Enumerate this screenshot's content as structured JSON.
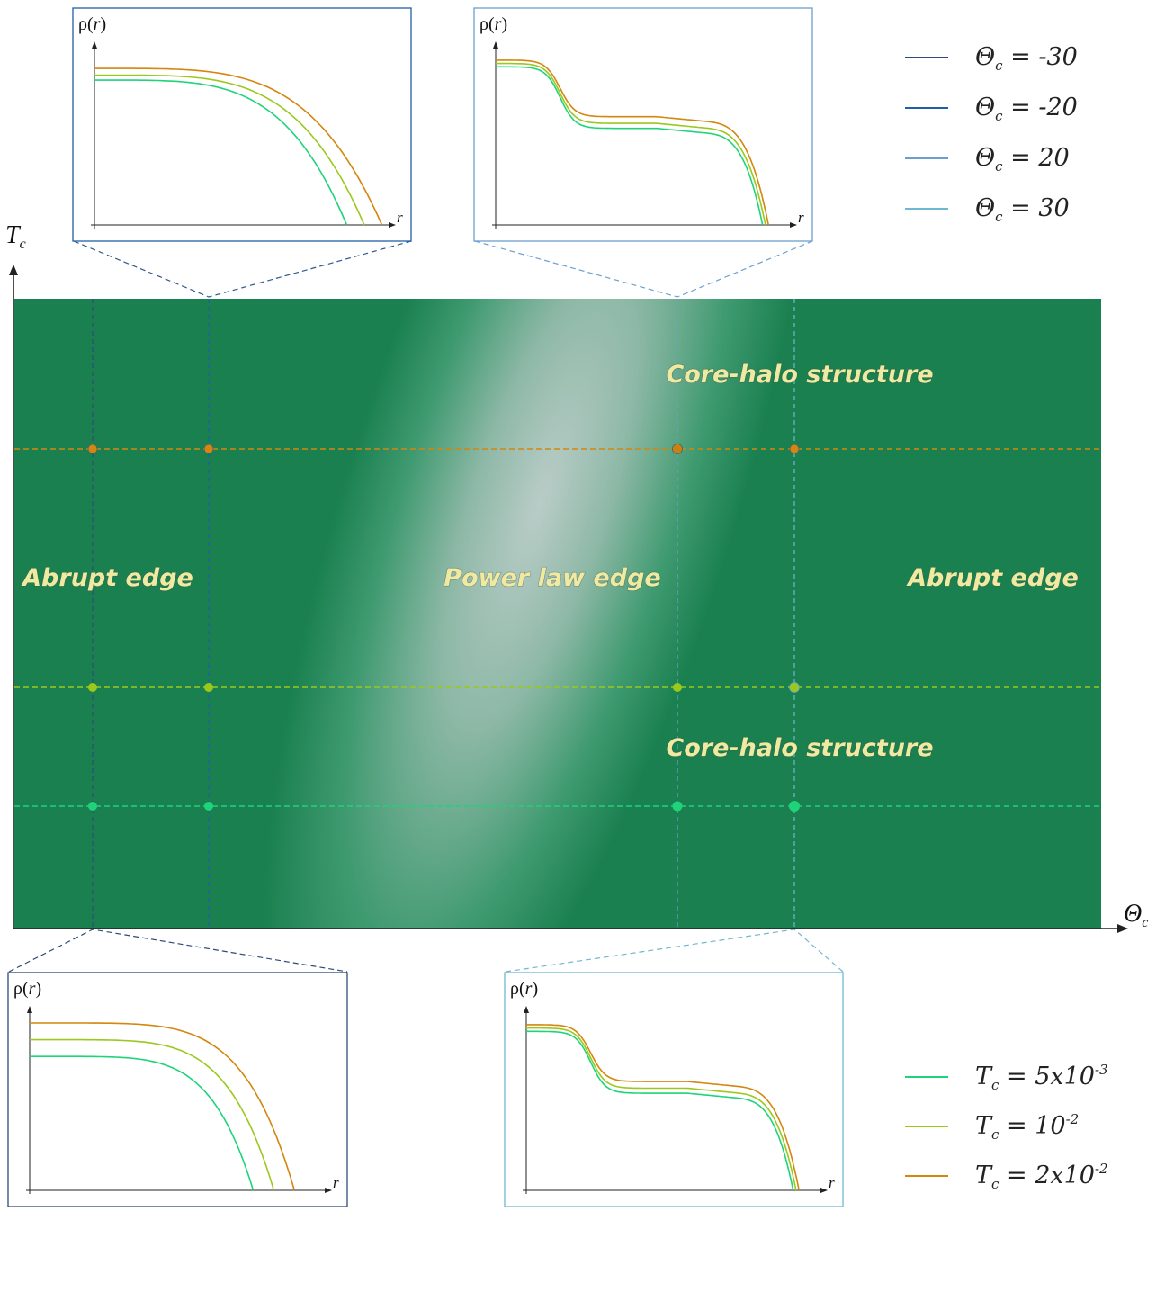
{
  "axes": {
    "y_label": "T",
    "y_sub": "c",
    "x_label": "Θ",
    "x_sub": "c"
  },
  "regions": {
    "core_halo_top": "Core-halo structure",
    "core_halo_bottom": "Core-halo structure",
    "abrupt_left": "Abrupt edge",
    "abrupt_right": "Abrupt edge",
    "power_law": "Power law edge"
  },
  "inset_labels": {
    "rho": "ρ(",
    "r_var": "r",
    "rho_close": ")",
    "r_axis": "r"
  },
  "legend_theta": [
    {
      "prefix": "Θ",
      "sub": "c",
      "text": " = -30",
      "color": "#2e4a78"
    },
    {
      "prefix": "Θ",
      "sub": "c",
      "text": " = -20",
      "color": "#1f5fa8"
    },
    {
      "prefix": "Θ",
      "sub": "c",
      "text": " = 20",
      "color": "#6c9fd0"
    },
    {
      "prefix": "Θ",
      "sub": "c",
      "text": " = 30",
      "color": "#6fb8cf"
    }
  ],
  "legend_T": [
    {
      "prefix": "T",
      "sub": "c",
      "text": " = 5x10",
      "sup": "-3",
      "color": "#1fd37a"
    },
    {
      "prefix": "T",
      "sub": "c",
      "text": " = 10",
      "sup": "-2",
      "color": "#9bc81c"
    },
    {
      "prefix": "T",
      "sub": "c",
      "text": " = 2x10",
      "sup": "-2",
      "color": "#d4860e"
    }
  ],
  "colors": {
    "background_green": "#1a8050",
    "highlight": "#b7c9c4",
    "T_low": "#1fd37a",
    "T_mid": "#9bc81c",
    "T_high": "#d4860e"
  }
}
